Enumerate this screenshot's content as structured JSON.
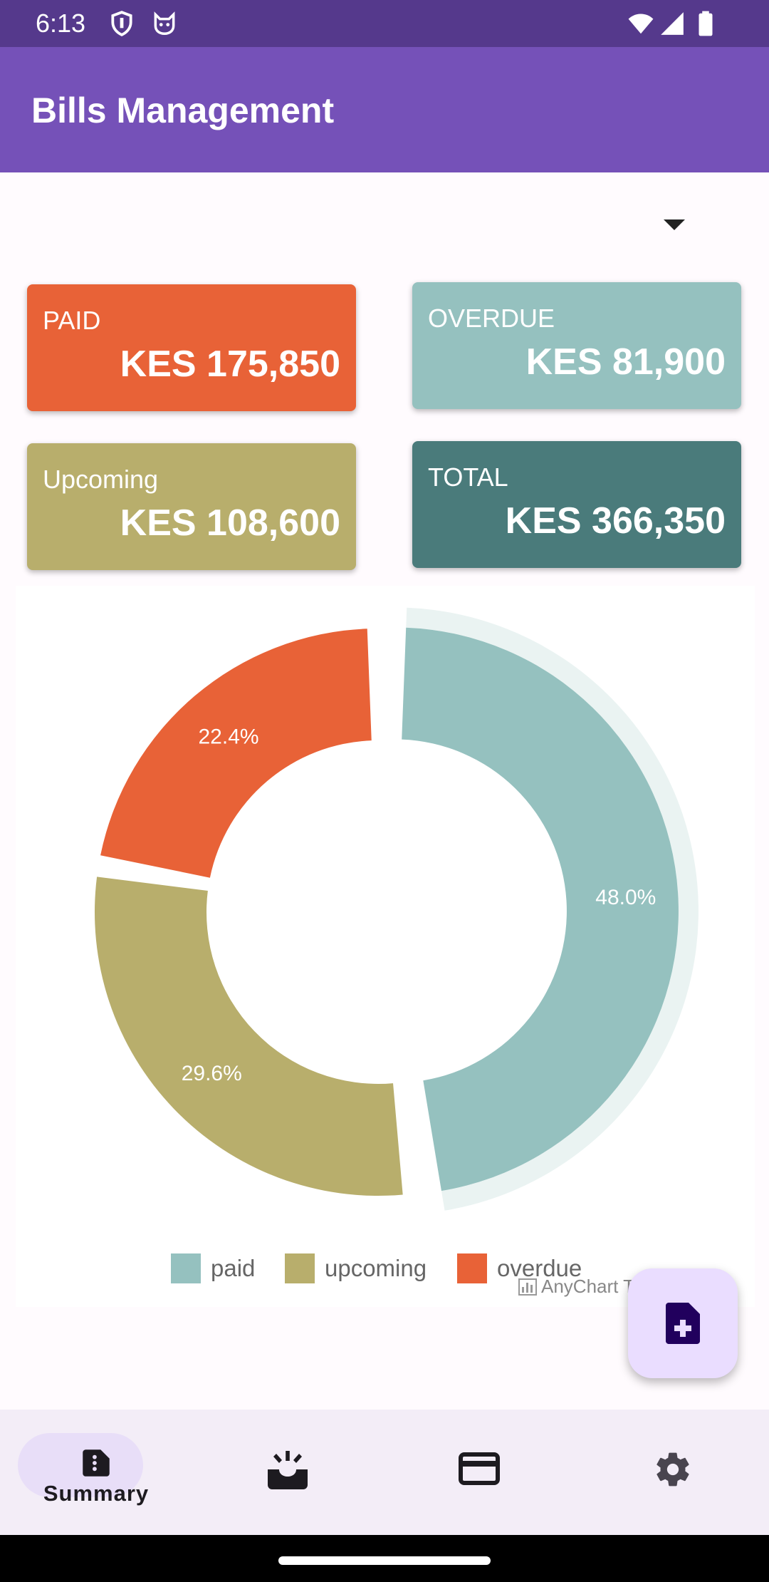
{
  "status_bar": {
    "time": "6:13",
    "icons": [
      "shield-icon",
      "cat-icon",
      "wifi-icon",
      "signal-icon",
      "battery-icon"
    ]
  },
  "app_bar": {
    "title": "Bills Management"
  },
  "summary_cards": {
    "paid": {
      "label": "PAID",
      "value": "KES 175,850",
      "color": "#e86237"
    },
    "overdue": {
      "label": "OVERDUE",
      "value": "KES 81,900",
      "color": "#95c1bf"
    },
    "upcoming": {
      "label": "Upcoming",
      "value": "KES 108,600",
      "color": "#b8ae6c"
    },
    "total": {
      "label": "TOTAL",
      "value": "KES 366,350",
      "color": "#4a7b7b"
    }
  },
  "chart_data": {
    "type": "pie",
    "style": "donut",
    "categories": [
      "paid",
      "upcoming",
      "overdue"
    ],
    "values": [
      48.0,
      29.6,
      22.4
    ],
    "labels": [
      "48.0%",
      "29.6%",
      "22.4%"
    ],
    "colors": [
      "#95c1bf",
      "#b8ae6c",
      "#e86237"
    ],
    "exploded": "paid",
    "legend": "bottom",
    "credit": "AnyChart T"
  },
  "fab": {
    "icon": "add-document-icon"
  },
  "bottom_nav": {
    "items": [
      {
        "label": "Summary",
        "icon": "summary-icon",
        "active": true
      },
      {
        "label": "",
        "icon": "inbox-icon",
        "active": false
      },
      {
        "label": "",
        "icon": "credit-card-icon",
        "active": false
      },
      {
        "label": "",
        "icon": "settings-icon",
        "active": false
      }
    ]
  }
}
